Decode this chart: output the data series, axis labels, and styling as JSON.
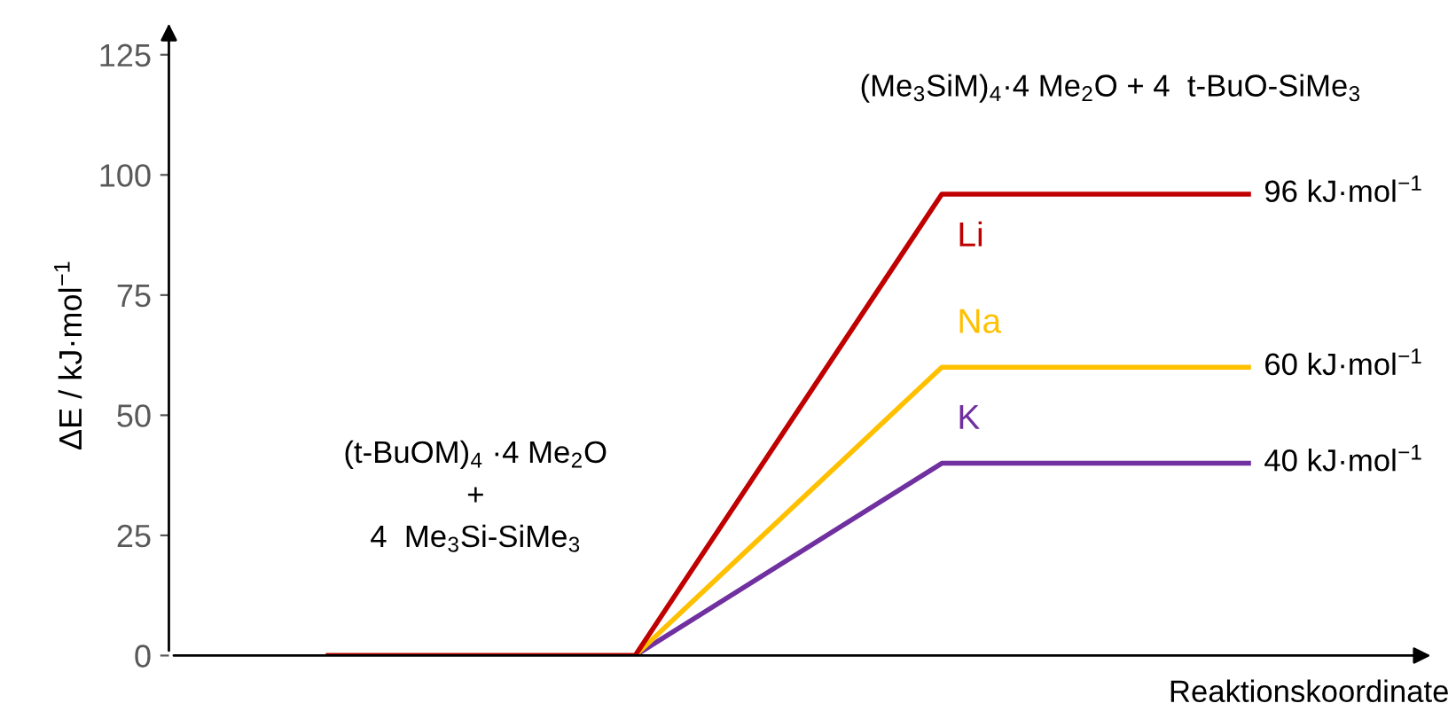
{
  "chart_data": {
    "type": "line",
    "ylabel": "ΔE / kJ·mol$^{−1}$",
    "xlabel": "Reaktionskoordinate",
    "categories": [
      null,
      null,
      null,
      null
    ],
    "series": [
      {
        "name": "Li",
        "color": "#c00000",
        "values": [
          0,
          0,
          96,
          96
        ],
        "value_labels": [
          null,
          null,
          null,
          "96 kJ·mol$^{−1}$"
        ]
      },
      {
        "name": "Na",
        "color": "#ffc000",
        "values": [
          0,
          0,
          60,
          60
        ],
        "value_labels": [
          null,
          null,
          null,
          "60 kJ·mol$^{−1}$"
        ]
      },
      {
        "name": "K",
        "color": "#7030a0",
        "values": [
          0,
          0,
          40,
          40
        ],
        "value_labels": [
          null,
          null,
          null,
          "40 kJ·mol$^{−1}$"
        ]
      }
    ],
    "annotations": [
      "(t-BuOM)$_{4}$ ·4 Me$_{2}$O\n+\n4  Me$_{3}$Si-SiMe$_{3}$",
      "(Me$_{3}$SiM)$_{4}$·4 Me$_{2}$O + 4  t-BuO-SiMe$_{3}$"
    ],
    "ylim": [
      0,
      125
    ],
    "yticks": [
      0,
      25,
      50,
      75,
      100,
      125
    ],
    "tick_labels": "y",
    "grid": false,
    "marker": "none",
    "line_style": "solid"
  }
}
